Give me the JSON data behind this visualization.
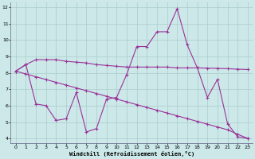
{
  "xlabel": "Windchill (Refroidissement éolien,°C)",
  "background_color": "#cce8e8",
  "grid_color": "#aacccc",
  "line_color": "#993399",
  "x": [
    0,
    1,
    2,
    3,
    4,
    5,
    6,
    7,
    8,
    9,
    10,
    11,
    12,
    13,
    14,
    15,
    16,
    17,
    18,
    19,
    20,
    21,
    22,
    23
  ],
  "line1": [
    8.1,
    8.5,
    8.8,
    8.8,
    8.8,
    8.7,
    8.65,
    8.6,
    8.5,
    8.45,
    8.4,
    8.35,
    8.35,
    8.35,
    8.35,
    8.35,
    8.3,
    8.3,
    8.3,
    8.28,
    8.27,
    8.25,
    8.22,
    8.2
  ],
  "line2": [
    8.1,
    8.5,
    6.1,
    6.0,
    5.1,
    5.2,
    6.8,
    4.4,
    4.6,
    6.4,
    6.5,
    7.9,
    9.6,
    9.6,
    10.5,
    10.5,
    11.9,
    9.7,
    8.3,
    6.5,
    7.6,
    4.9,
    4.1,
    4.0
  ],
  "line3": [
    8.1,
    7.93,
    7.76,
    7.59,
    7.42,
    7.25,
    7.08,
    6.91,
    6.74,
    6.57,
    6.4,
    6.23,
    6.06,
    5.89,
    5.72,
    5.55,
    5.38,
    5.21,
    5.04,
    4.87,
    4.7,
    4.53,
    4.26,
    4.0
  ],
  "ylim": [
    4,
    12
  ],
  "xlim": [
    0,
    23
  ],
  "yticks": [
    4,
    5,
    6,
    7,
    8,
    9,
    10,
    11,
    12
  ],
  "xticks": [
    0,
    1,
    2,
    3,
    4,
    5,
    6,
    7,
    8,
    9,
    10,
    11,
    12,
    13,
    14,
    15,
    16,
    17,
    18,
    19,
    20,
    21,
    22,
    23
  ]
}
